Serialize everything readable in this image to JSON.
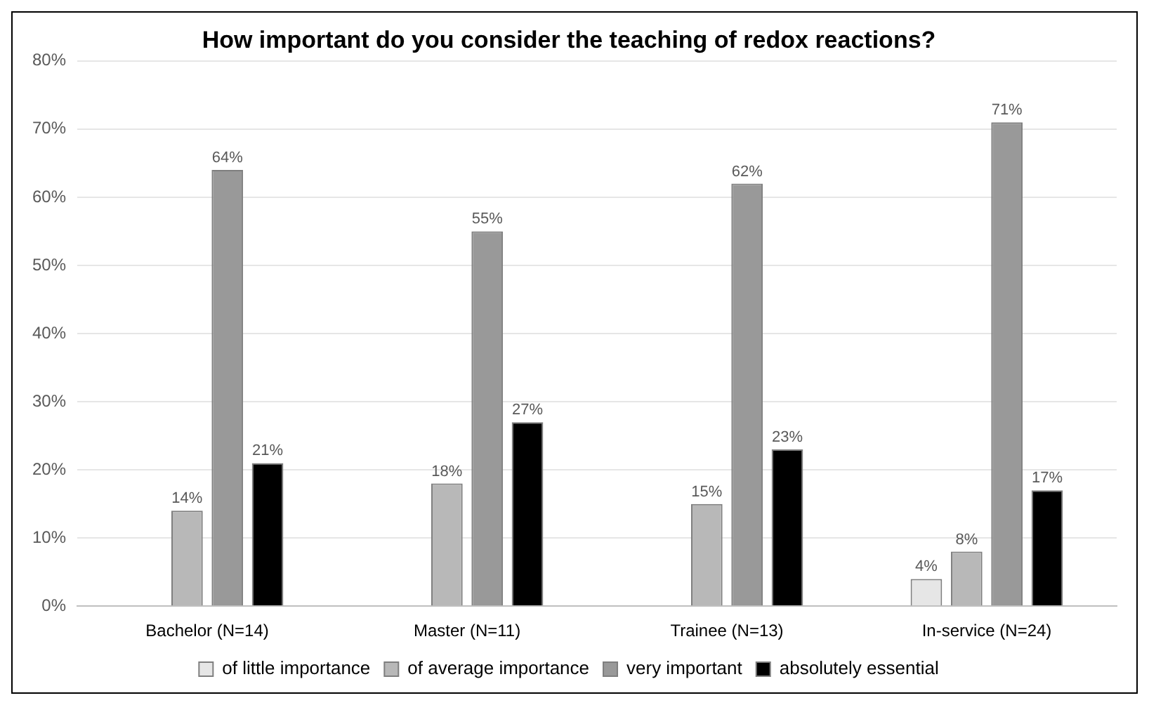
{
  "chart_data": {
    "type": "bar",
    "title": "How important do you consider the teaching of redox reactions?",
    "categories": [
      "Bachelor (N=14)",
      "Master (N=11)",
      "Trainee (N=13)",
      "In-service (N=24)"
    ],
    "series": [
      {
        "name": "of little importance",
        "color": "#e6e6e6",
        "values": [
          0,
          0,
          0,
          4
        ],
        "value_labels": [
          null,
          null,
          null,
          "4%"
        ]
      },
      {
        "name": "of average importance",
        "color": "#b8b8b8",
        "values": [
          14,
          18,
          15,
          8
        ],
        "value_labels": [
          "14%",
          "18%",
          "15%",
          "8%"
        ]
      },
      {
        "name": "very important",
        "color": "#999999",
        "values": [
          64,
          55,
          62,
          71
        ],
        "value_labels": [
          "64%",
          "55%",
          "62%",
          "71%"
        ]
      },
      {
        "name": "absolutely essential",
        "color": "#000000",
        "values": [
          21,
          27,
          23,
          17
        ],
        "value_labels": [
          "21%",
          "27%",
          "23%",
          "17%"
        ]
      }
    ],
    "ylim": [
      0,
      80
    ],
    "yticks": [
      {
        "value": 0,
        "label": "0%"
      },
      {
        "value": 10,
        "label": "10%"
      },
      {
        "value": 20,
        "label": "20%"
      },
      {
        "value": 30,
        "label": "30%"
      },
      {
        "value": 40,
        "label": "40%"
      },
      {
        "value": 50,
        "label": "50%"
      },
      {
        "value": 60,
        "label": "60%"
      },
      {
        "value": 70,
        "label": "70%"
      },
      {
        "value": 80,
        "label": "80%"
      }
    ],
    "grid": "y",
    "legend": "bottom"
  }
}
